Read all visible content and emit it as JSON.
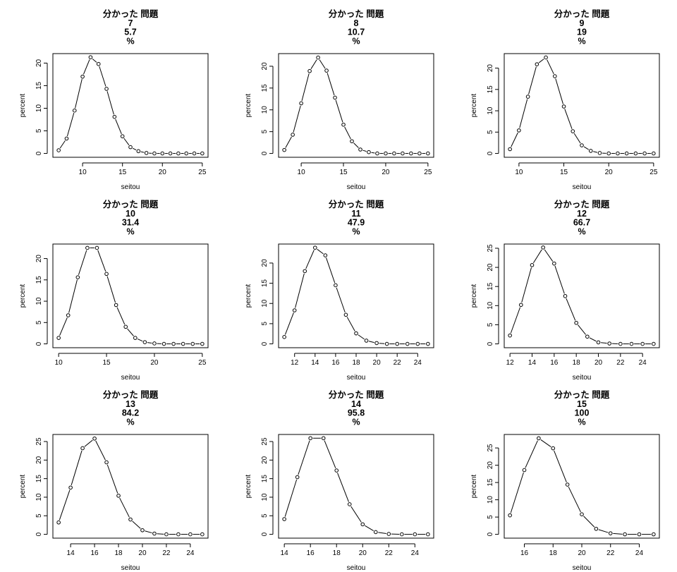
{
  "chart_data": [
    {
      "type": "line",
      "title": [
        "分かった 問題",
        "7",
        "5.7",
        "%"
      ],
      "xlabel": "seitou",
      "ylabel": "percent",
      "xticks": [
        10,
        15,
        20,
        25
      ],
      "yticks": [
        0,
        5,
        10,
        15,
        20
      ],
      "xlim": [
        6.28,
        25.72
      ],
      "ylim": [
        -0.85,
        22.1
      ],
      "x": [
        7,
        8,
        9,
        10,
        11,
        12,
        13,
        14,
        15,
        16,
        17,
        18,
        19,
        20,
        21,
        22,
        23,
        24,
        25
      ],
      "y": [
        0.7,
        3.3,
        9.5,
        17.0,
        21.3,
        19.8,
        14.3,
        8.1,
        3.8,
        1.4,
        0.5,
        0.1,
        0,
        0,
        0,
        0,
        0,
        0,
        0
      ],
      "markers": "open-circle",
      "grid": false,
      "legend": "none"
    },
    {
      "type": "line",
      "title": [
        "分かった 問題",
        "8",
        "10.7",
        "%"
      ],
      "xlabel": "seitou",
      "ylabel": "percent",
      "xticks": [
        10,
        15,
        20,
        25
      ],
      "yticks": [
        0,
        5,
        10,
        15,
        20
      ],
      "xlim": [
        7.32,
        25.68
      ],
      "ylim": [
        -0.88,
        22.9
      ],
      "x": [
        8,
        9,
        10,
        11,
        12,
        13,
        14,
        15,
        16,
        17,
        18,
        19,
        20,
        21,
        22,
        23,
        24,
        25
      ],
      "y": [
        0.8,
        4.3,
        11.5,
        18.9,
        22.0,
        19.0,
        12.8,
        6.6,
        2.8,
        0.9,
        0.3,
        0,
        0,
        0,
        0,
        0,
        0,
        0
      ],
      "markers": "open-circle",
      "grid": false,
      "legend": "none"
    },
    {
      "type": "line",
      "title": [
        "分かった 問題",
        "9",
        "19",
        "%"
      ],
      "xlabel": "seitou",
      "ylabel": "percent",
      "xticks": [
        10,
        15,
        20,
        25
      ],
      "yticks": [
        0,
        5,
        10,
        15,
        20
      ],
      "xlim": [
        8.36,
        25.64
      ],
      "ylim": [
        -0.9,
        23.4
      ],
      "x": [
        9,
        10,
        11,
        12,
        13,
        14,
        15,
        16,
        17,
        18,
        19,
        20,
        21,
        22,
        23,
        24,
        25
      ],
      "y": [
        1.0,
        5.4,
        13.3,
        20.9,
        22.5,
        18.1,
        11.0,
        5.2,
        1.9,
        0.6,
        0.1,
        0,
        0,
        0,
        0,
        0,
        0
      ],
      "markers": "open-circle",
      "grid": false,
      "legend": "none"
    },
    {
      "type": "line",
      "title": [
        "分かった 問題",
        "10",
        "31.4",
        "%"
      ],
      "xlabel": "seitou",
      "ylabel": "percent",
      "xticks": [
        10,
        15,
        20,
        25
      ],
      "yticks": [
        0,
        5,
        10,
        15,
        20
      ],
      "xlim": [
        9.4,
        25.6
      ],
      "ylim": [
        -0.9,
        23.4
      ],
      "x": [
        10,
        11,
        12,
        13,
        14,
        15,
        16,
        17,
        18,
        19,
        20,
        21,
        22,
        23,
        24,
        25
      ],
      "y": [
        1.4,
        6.7,
        15.6,
        22.5,
        22.5,
        16.4,
        9.1,
        4.0,
        1.4,
        0.4,
        0.1,
        0,
        0,
        0,
        0,
        0
      ],
      "markers": "open-circle",
      "grid": false,
      "legend": "none"
    },
    {
      "type": "line",
      "title": [
        "分かった 問題",
        "11",
        "47.9",
        "%"
      ],
      "xlabel": "seitou",
      "ylabel": "percent",
      "xticks": [
        12,
        14,
        16,
        18,
        20,
        22,
        24
      ],
      "yticks": [
        0,
        5,
        10,
        15,
        20
      ],
      "xlim": [
        10.44,
        25.56
      ],
      "ylim": [
        -0.95,
        24.7
      ],
      "x": [
        11,
        12,
        13,
        14,
        15,
        16,
        17,
        18,
        19,
        20,
        21,
        22,
        23,
        24,
        25
      ],
      "y": [
        1.7,
        8.3,
        18.0,
        23.8,
        21.9,
        14.5,
        7.2,
        2.6,
        0.8,
        0.2,
        0,
        0,
        0,
        0,
        0
      ],
      "markers": "open-circle",
      "grid": false,
      "legend": "none"
    },
    {
      "type": "line",
      "title": [
        "分かった 問題",
        "12",
        "66.7",
        "%"
      ],
      "xlabel": "seitou",
      "ylabel": "percent",
      "xticks": [
        12,
        14,
        16,
        18,
        20,
        22,
        24
      ],
      "yticks": [
        0,
        5,
        10,
        15,
        20,
        25
      ],
      "xlim": [
        11.48,
        25.52
      ],
      "ylim": [
        -1.0,
        26.1
      ],
      "x": [
        12,
        13,
        14,
        15,
        16,
        17,
        18,
        19,
        20,
        21,
        22,
        23,
        24,
        25
      ],
      "y": [
        2.2,
        10.2,
        20.6,
        25.2,
        21.0,
        12.5,
        5.5,
        1.9,
        0.4,
        0.1,
        0,
        0,
        0,
        0
      ],
      "markers": "open-circle",
      "grid": false,
      "legend": "none"
    },
    {
      "type": "line",
      "title": [
        "分かった 問題",
        "13",
        "84.2",
        "%"
      ],
      "xlabel": "seitou",
      "ylabel": "percent",
      "xticks": [
        14,
        16,
        18,
        20,
        22,
        24
      ],
      "yticks": [
        0,
        5,
        10,
        15,
        20,
        25
      ],
      "xlim": [
        12.52,
        25.48
      ],
      "ylim": [
        -1.03,
        26.9
      ],
      "x": [
        13,
        14,
        15,
        16,
        17,
        18,
        19,
        20,
        21,
        22,
        23,
        24,
        25
      ],
      "y": [
        3.2,
        12.6,
        23.2,
        25.8,
        19.4,
        10.4,
        4.0,
        1.1,
        0.2,
        0,
        0,
        0,
        0
      ],
      "markers": "open-circle",
      "grid": false,
      "legend": "none"
    },
    {
      "type": "line",
      "title": [
        "分かった 問題",
        "14",
        "95.8",
        "%"
      ],
      "xlabel": "seitou",
      "ylabel": "percent",
      "xticks": [
        14,
        16,
        18,
        20,
        22,
        24
      ],
      "yticks": [
        0,
        5,
        10,
        15,
        20,
        25
      ],
      "xlim": [
        13.56,
        25.44
      ],
      "ylim": [
        -1.03,
        26.9
      ],
      "x": [
        14,
        15,
        16,
        17,
        18,
        19,
        20,
        21,
        22,
        23,
        24,
        25
      ],
      "y": [
        4.1,
        15.4,
        25.9,
        25.9,
        17.2,
        8.1,
        2.7,
        0.6,
        0.1,
        0,
        0,
        0
      ],
      "markers": "open-circle",
      "grid": false,
      "legend": "none"
    },
    {
      "type": "line",
      "title": [
        "分かった 問題",
        "15",
        "100",
        "%"
      ],
      "xlabel": "seitou",
      "ylabel": "percent",
      "xticks": [
        16,
        18,
        20,
        22,
        24
      ],
      "yticks": [
        0,
        5,
        10,
        15,
        20,
        25
      ],
      "xlim": [
        14.6,
        25.4
      ],
      "ylim": [
        -1.1,
        28.9
      ],
      "x": [
        15,
        16,
        17,
        18,
        19,
        20,
        21,
        22,
        23,
        24,
        25
      ],
      "y": [
        5.5,
        18.6,
        27.8,
        24.9,
        14.4,
        5.8,
        1.6,
        0.3,
        0,
        0,
        0
      ],
      "markers": "open-circle",
      "grid": false,
      "legend": "none"
    }
  ]
}
